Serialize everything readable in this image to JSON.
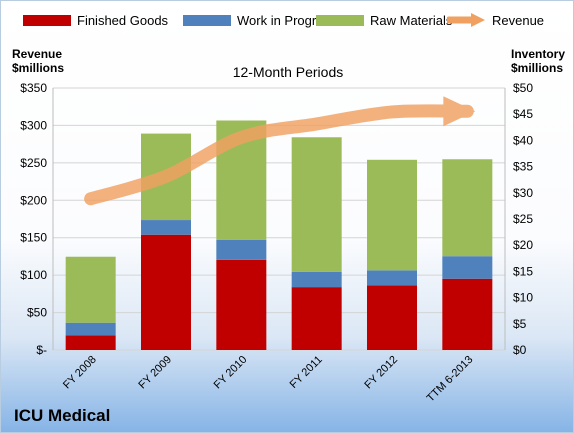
{
  "chart_data": {
    "type": "bar",
    "stacked": true,
    "subtitle": "12-Month Periods",
    "categories": [
      "FY 2008",
      "FY 2009",
      "FY 2010",
      "FY 2011",
      "FY 2012",
      "TTM 6-2013"
    ],
    "series": [
      {
        "name": "Finished Goods",
        "axis": "right",
        "color": "#c00000",
        "values": [
          2.8,
          22.0,
          17.2,
          12.0,
          12.3,
          13.6
        ]
      },
      {
        "name": "Work in Progress",
        "axis": "right",
        "color": "#4f81bd",
        "values": [
          2.4,
          2.8,
          3.8,
          2.9,
          2.9,
          4.3
        ]
      },
      {
        "name": "Raw Materials",
        "axis": "right",
        "color": "#9bbb59",
        "values": [
          12.6,
          16.5,
          22.8,
          25.7,
          21.1,
          18.5
        ]
      },
      {
        "name": "Revenue",
        "axis": "left",
        "type": "line",
        "color": "#f0a060",
        "values": [
          202,
          232,
          284,
          302,
          318,
          319
        ]
      }
    ],
    "y_left": {
      "label_line1": "Revenue",
      "label_line2": "$millions",
      "ylim": [
        0,
        350
      ],
      "ticks": [
        "$-",
        "$50",
        "$100",
        "$150",
        "$200",
        "$250",
        "$300",
        "$350"
      ]
    },
    "y_right": {
      "label_line1": "Inventory",
      "label_line2": "$millions",
      "ylim": [
        0,
        50
      ],
      "ticks": [
        "$0",
        "$5",
        "$10",
        "$15",
        "$20",
        "$25",
        "$30",
        "$35",
        "$40",
        "$45",
        "$50"
      ]
    },
    "grid": true,
    "legend_position": "top",
    "company": "ICU Medical"
  }
}
